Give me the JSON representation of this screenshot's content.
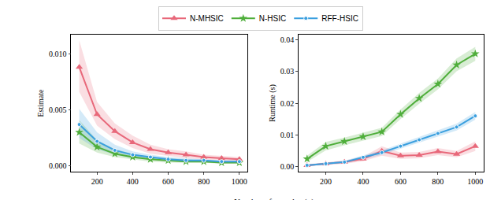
{
  "chart_data": {
    "type": "line",
    "x_label": "Number of samples (n)",
    "legend": "top",
    "grid": false,
    "x": [
      100,
      200,
      300,
      400,
      500,
      600,
      700,
      800,
      900,
      1000
    ],
    "xlim": [
      55,
      1045
    ],
    "xticks": [
      200,
      400,
      600,
      800,
      1000
    ],
    "panels": [
      {
        "y_label": "Estimate",
        "ylim": [
          -0.0005,
          0.0117
        ],
        "yticks": [
          {
            "value": 0,
            "label": "0.000"
          },
          {
            "value": 0.005,
            "label": "0.005"
          },
          {
            "value": 0.01,
            "label": "0.010"
          }
        ],
        "series": [
          {
            "name": "N-MHSIC",
            "color": "#e8687a",
            "marker": "triangle-up",
            "values": [
              0.0088,
              0.0046,
              0.0031,
              0.0021,
              0.0015,
              0.0012,
              0.001,
              0.0008,
              0.0007,
              0.0006
            ],
            "lower": [
              0.0066,
              0.0036,
              0.0024,
              0.0016,
              0.0011,
              0.0009,
              0.0007,
              0.0006,
              0.0005,
              0.0004
            ],
            "upper": [
              0.0112,
              0.0057,
              0.0038,
              0.0027,
              0.0019,
              0.0015,
              0.0013,
              0.001,
              0.0009,
              0.0008
            ]
          },
          {
            "name": "N-HSIC",
            "color": "#4fae3b",
            "marker": "star",
            "values": [
              0.003,
              0.0017,
              0.0011,
              0.0008,
              0.0006,
              0.0005,
              0.0004,
              0.0004,
              0.0003,
              0.0003
            ],
            "lower": [
              0.002,
              0.0012,
              0.0008,
              0.0006,
              0.0004,
              0.0003,
              0.0003,
              0.0003,
              0.0002,
              0.0002
            ],
            "upper": [
              0.0041,
              0.0023,
              0.0015,
              0.0011,
              0.0008,
              0.0007,
              0.0006,
              0.0005,
              0.0004,
              0.0004
            ]
          },
          {
            "name": "RFF-HSIC",
            "color": "#3a9fdf",
            "marker": "circle",
            "values": [
              0.0037,
              0.0022,
              0.0014,
              0.001,
              0.0008,
              0.0006,
              0.0005,
              0.0005,
              0.0004,
              0.0004
            ],
            "lower": [
              0.0025,
              0.0015,
              0.001,
              0.0007,
              0.0006,
              0.0004,
              0.0004,
              0.0004,
              0.0003,
              0.0003
            ],
            "upper": [
              0.0051,
              0.003,
              0.0019,
              0.0013,
              0.001,
              0.0008,
              0.0007,
              0.0006,
              0.0005,
              0.0005
            ]
          }
        ]
      },
      {
        "y_label": "Runtime (s)",
        "ylim": [
          -0.0015,
          0.0415
        ],
        "yticks": [
          {
            "value": 0,
            "label": "0.00"
          },
          {
            "value": 0.01,
            "label": "0.01"
          },
          {
            "value": 0.02,
            "label": "0.02"
          },
          {
            "value": 0.03,
            "label": "0.03"
          },
          {
            "value": 0.04,
            "label": "0.04"
          }
        ],
        "series": [
          {
            "name": "N-MHSIC",
            "color": "#e8687a",
            "marker": "triangle-up",
            "values": [
              0.0005,
              0.001,
              0.0015,
              0.0025,
              0.005,
              0.0035,
              0.0037,
              0.0048,
              0.004,
              0.0065
            ],
            "lower": [
              0.0002,
              0.0006,
              0.001,
              0.0018,
              0.0035,
              0.0025,
              0.0027,
              0.0037,
              0.003,
              0.005
            ],
            "upper": [
              0.0008,
              0.0014,
              0.002,
              0.0032,
              0.0065,
              0.0045,
              0.0047,
              0.0059,
              0.005,
              0.008
            ]
          },
          {
            "name": "N-HSIC",
            "color": "#4fae3b",
            "marker": "star",
            "values": [
              0.0025,
              0.0065,
              0.008,
              0.0095,
              0.011,
              0.0165,
              0.0215,
              0.026,
              0.032,
              0.0355
            ],
            "lower": [
              0.0015,
              0.0052,
              0.0068,
              0.0083,
              0.0097,
              0.015,
              0.0198,
              0.0243,
              0.03,
              0.0333
            ],
            "upper": [
              0.0035,
              0.0078,
              0.0092,
              0.0107,
              0.0123,
              0.018,
              0.0232,
              0.0277,
              0.034,
              0.0377
            ]
          },
          {
            "name": "RFF-HSIC",
            "color": "#3a9fdf",
            "marker": "circle",
            "values": [
              0.0005,
              0.001,
              0.0015,
              0.003,
              0.0045,
              0.0065,
              0.0085,
              0.0105,
              0.0125,
              0.016
            ],
            "lower": [
              0.0002,
              0.0007,
              0.0011,
              0.0024,
              0.0038,
              0.0057,
              0.0076,
              0.0095,
              0.0114,
              0.0148
            ],
            "upper": [
              0.0008,
              0.0013,
              0.0019,
              0.0036,
              0.0052,
              0.0073,
              0.0094,
              0.0115,
              0.0136,
              0.0172
            ]
          }
        ]
      }
    ]
  }
}
